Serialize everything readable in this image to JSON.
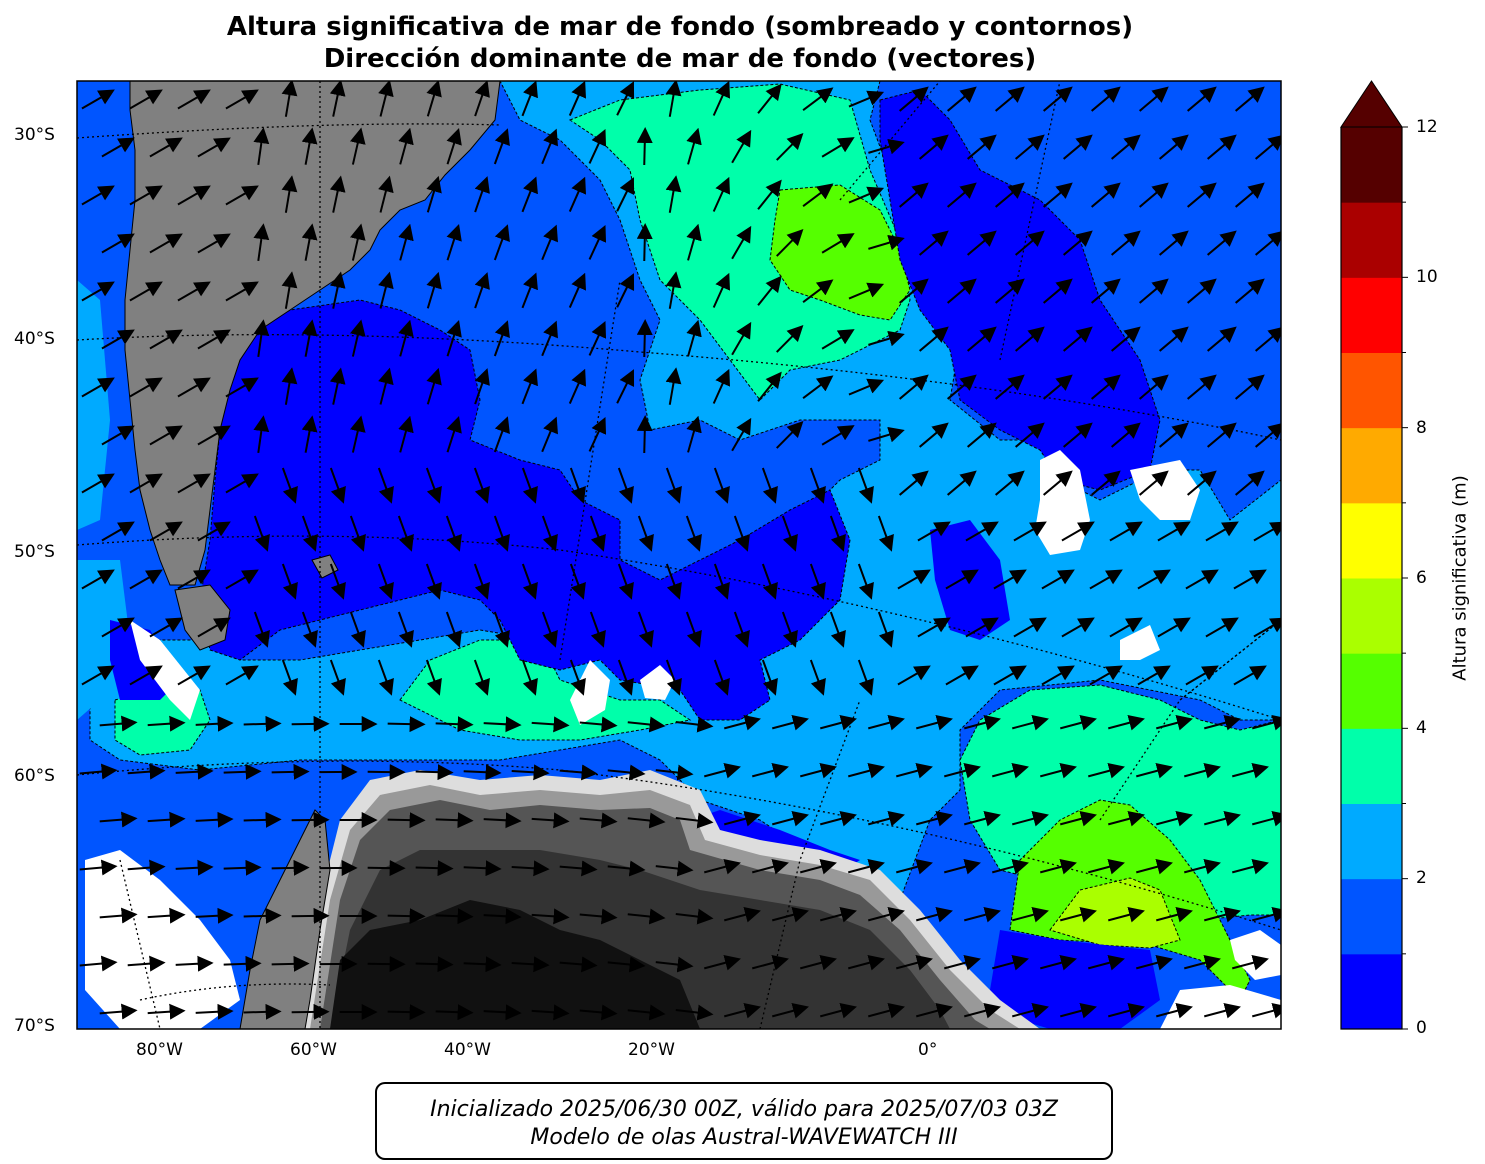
{
  "title": {
    "line1": "Altura significativa de mar de fondo (sombreado y contornos)",
    "line2": "Dirección dominante de mar de fondo (vectores)"
  },
  "axes": {
    "lat_labels": [
      "30°S",
      "40°S",
      "50°S",
      "60°S",
      "70°S"
    ],
    "lon_labels": [
      "80°W",
      "60°W",
      "40°W",
      "20°W",
      "0°"
    ]
  },
  "colorbar": {
    "label": "Altura significativa (m)",
    "tick_labels": [
      "0",
      "2",
      "4",
      "6",
      "8",
      "10",
      "12"
    ],
    "colors": [
      "#0000ff",
      "#0055ff",
      "#00aaff",
      "#00ffaa",
      "#55ff00",
      "#aaff00",
      "#ffff00",
      "#ffaa00",
      "#ff5500",
      "#ff0000",
      "#aa0000",
      "#550000"
    ],
    "extend_color": "#550000"
  },
  "footer": {
    "line1": "Inicializado 2025/06/30 00Z, válido para 2025/07/03 03Z",
    "line2": "Modelo de olas Austral-WAVEWATCH III"
  },
  "colors": {
    "land": "#808080",
    "ice_shades": [
      "#111111",
      "#333333",
      "#555555",
      "#777777",
      "#999999",
      "#bbbbbb",
      "#dddddd"
    ],
    "no_data": "#ffffff"
  }
}
